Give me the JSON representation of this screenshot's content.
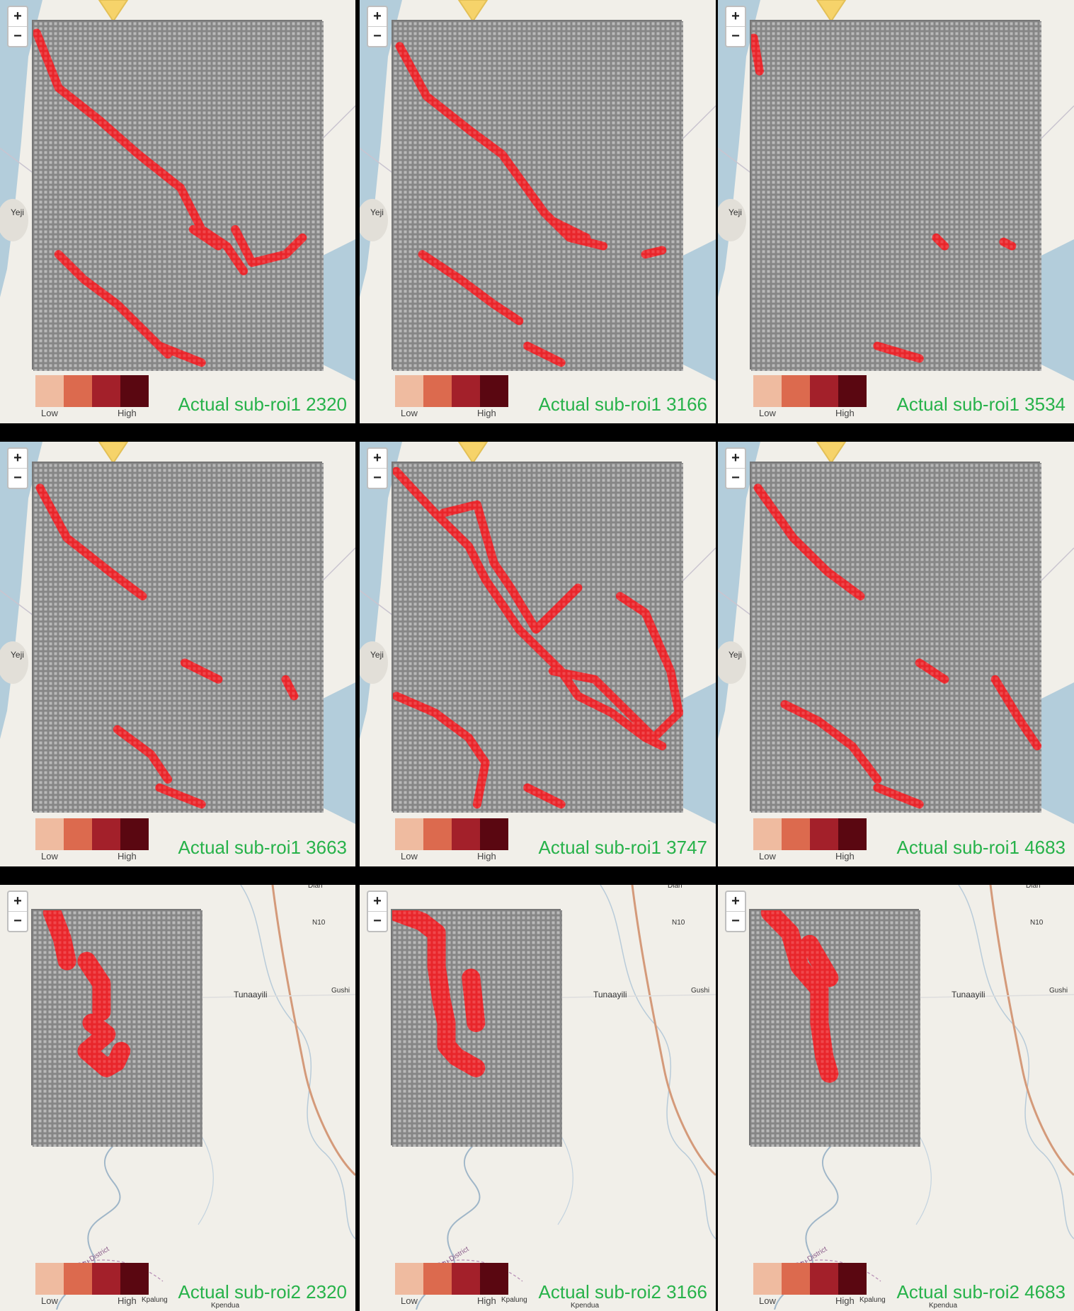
{
  "colors": {
    "legend": [
      "#efbba0",
      "#dc6a4e",
      "#a3202a",
      "#5a0711"
    ],
    "flood": "#e8262b",
    "water": "#b3cddb",
    "caption": "#27b24a"
  },
  "zoom": {
    "in_label": "+",
    "out_label": "−"
  },
  "legend_labels": {
    "low": "Low",
    "high": "High"
  },
  "places": {
    "yeji": "Yeji",
    "tunaayili": "Tunaayili",
    "gushi": "Gushi",
    "diari": "Diari",
    "n10": "N10",
    "kumbungu": "Kumbungu District",
    "kpalung": "Kpalung",
    "kpendua": "Kpendua"
  },
  "panels": [
    {
      "caption": "Actual sub-roi1 2320",
      "region": "roi1"
    },
    {
      "caption": "Actual sub-roi1 3166",
      "region": "roi1"
    },
    {
      "caption": "Actual sub-roi1 3534",
      "region": "roi1"
    },
    {
      "caption": "Actual sub-roi1 3663",
      "region": "roi1"
    },
    {
      "caption": "Actual sub-roi1 3747",
      "region": "roi1"
    },
    {
      "caption": "Actual sub-roi1 4683",
      "region": "roi1"
    },
    {
      "caption": "Actual sub-roi2 2320",
      "region": "roi2"
    },
    {
      "caption": "Actual sub-roi2 3166",
      "region": "roi2"
    },
    {
      "caption": "Actual sub-roi2 4683",
      "region": "roi2"
    }
  ]
}
